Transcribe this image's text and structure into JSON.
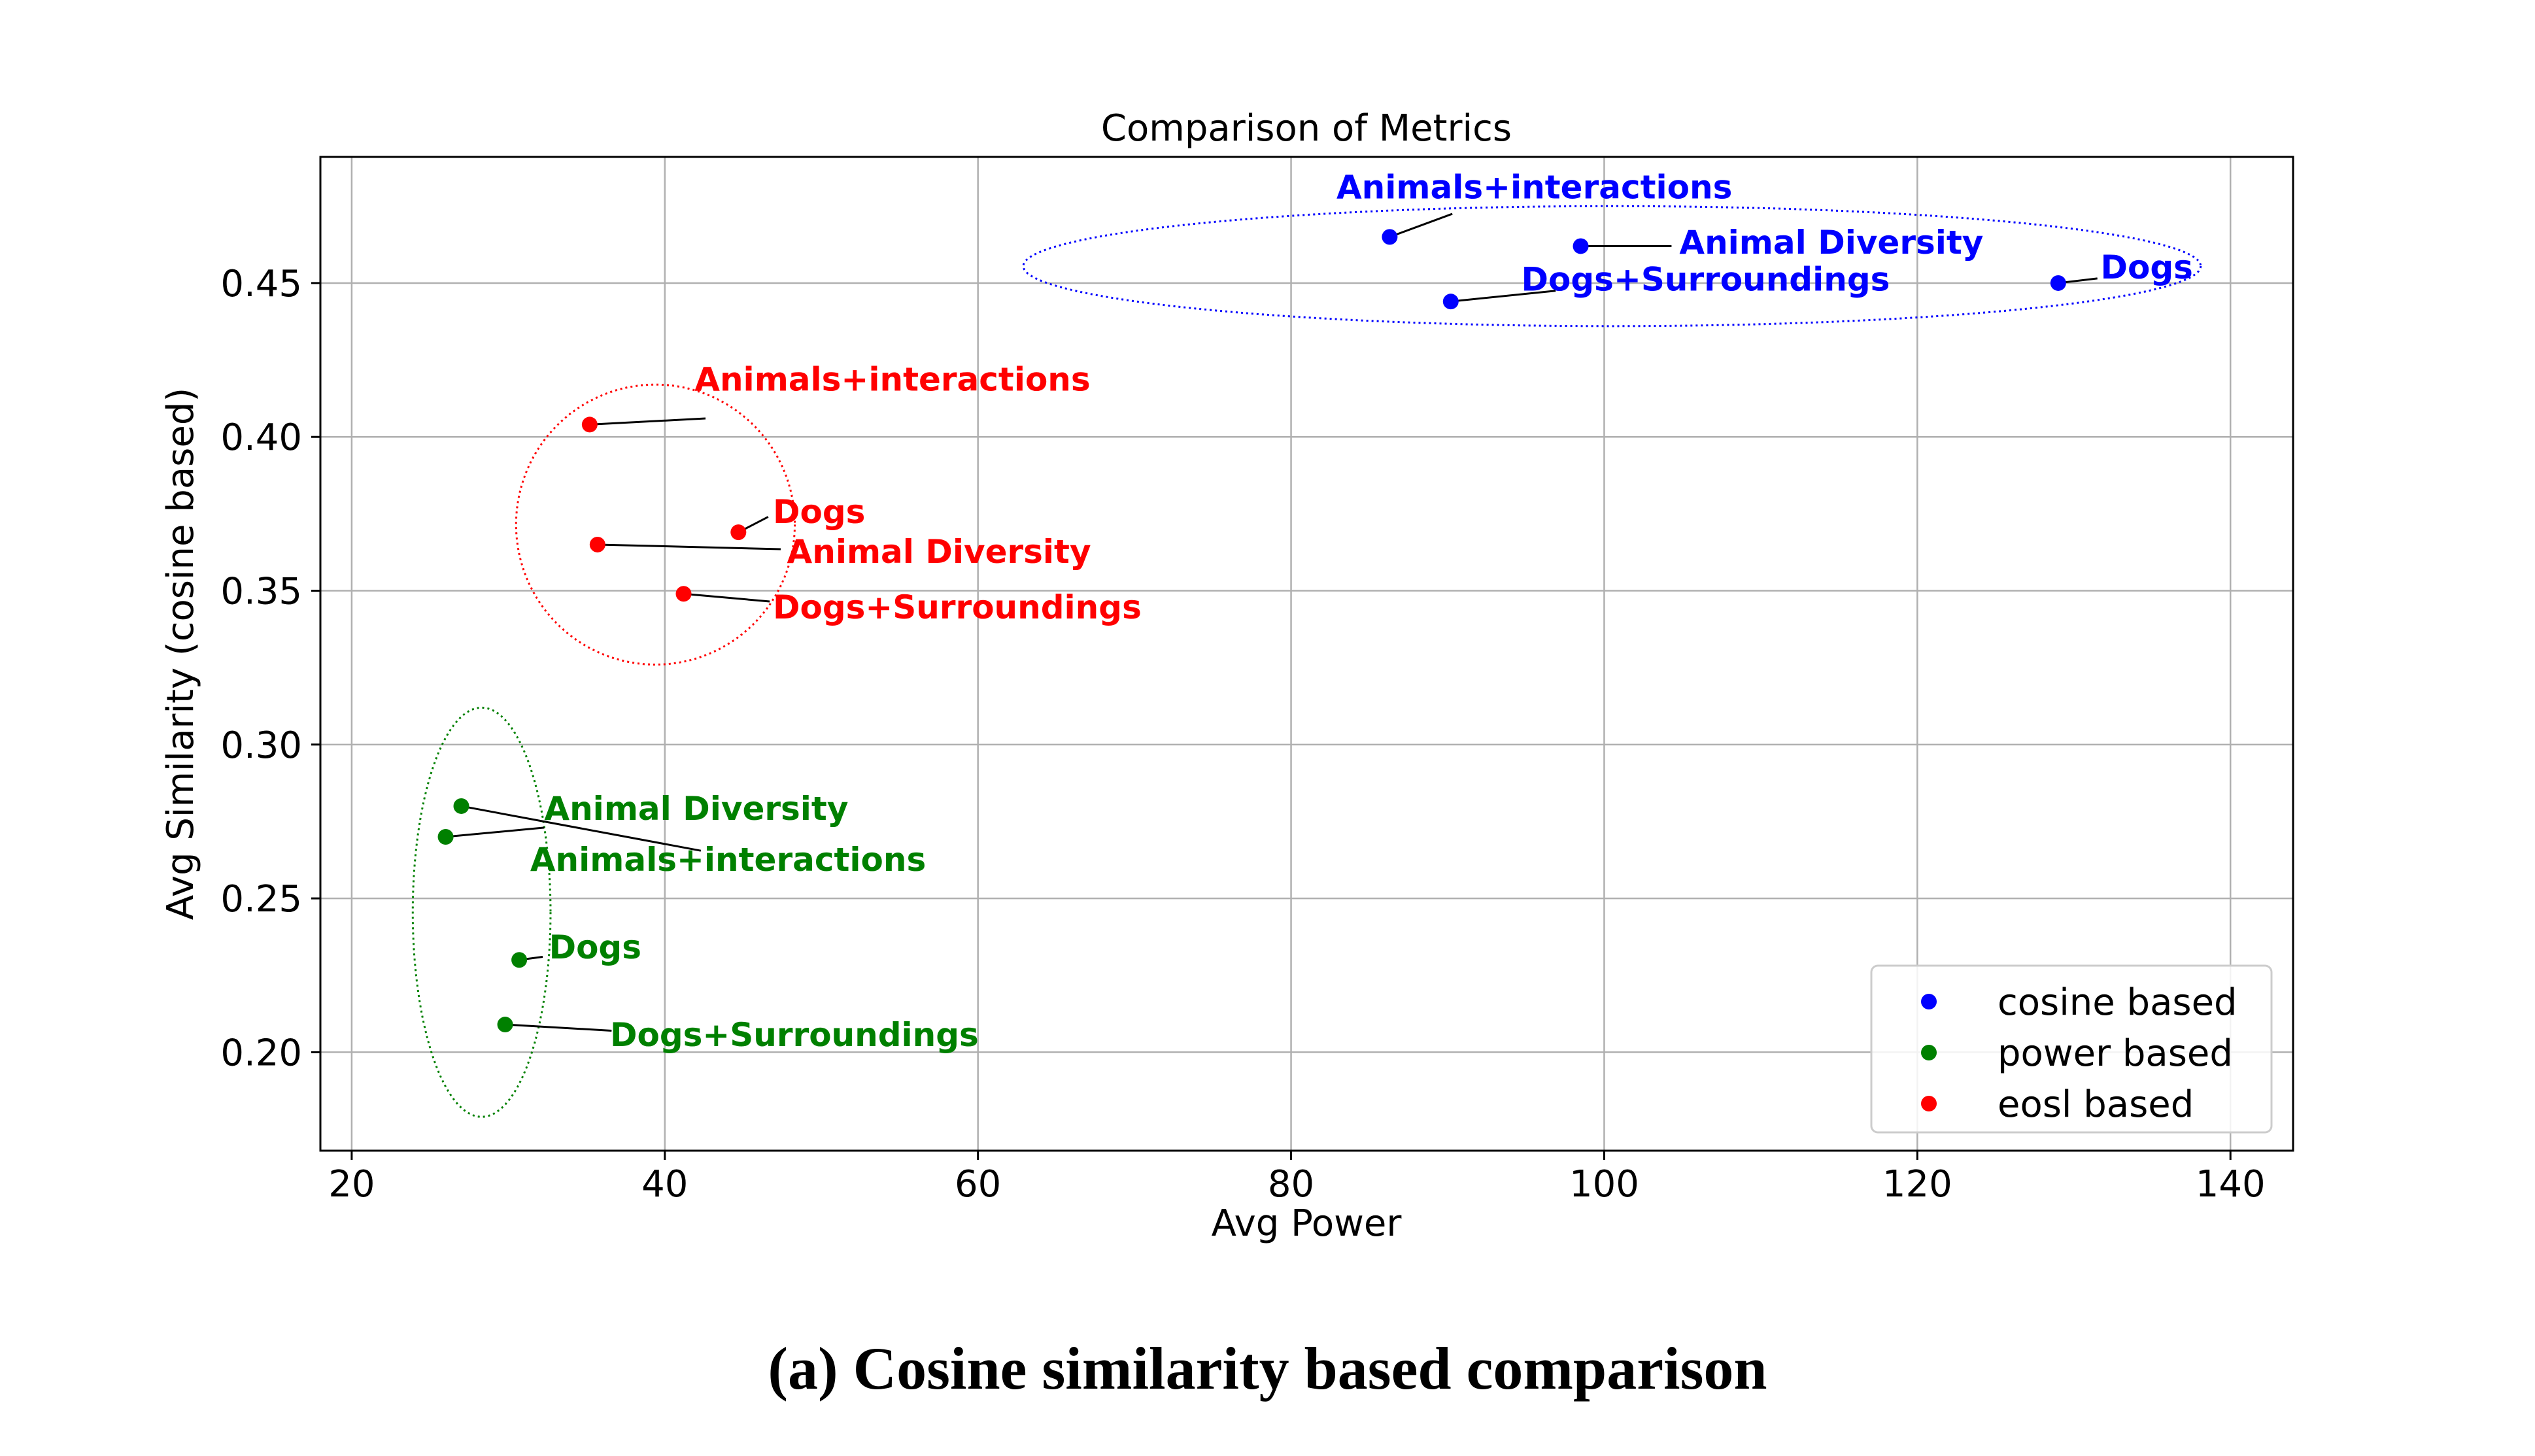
{
  "caption": "(a) Cosine similarity based comparison",
  "chart_data": {
    "type": "scatter",
    "title": "Comparison of Metrics",
    "xlabel": "Avg Power",
    "ylabel": "Avg Similarity (cosine based)",
    "xlim": [
      18,
      144
    ],
    "ylim": [
      0.168,
      0.491
    ],
    "xticks": [
      20,
      40,
      60,
      80,
      100,
      120,
      140
    ],
    "yticks": [
      0.2,
      0.25,
      0.3,
      0.35,
      0.4,
      0.45
    ],
    "xtick_labels": [
      "20",
      "40",
      "60",
      "80",
      "100",
      "120",
      "140"
    ],
    "ytick_labels": [
      "0.20",
      "0.25",
      "0.30",
      "0.35",
      "0.40",
      "0.45"
    ],
    "grid": true,
    "legend_position": "lower-right",
    "series": [
      {
        "name": "cosine based",
        "color": "#0000ff",
        "points": [
          {
            "label": "Animals+interactions",
            "x": 86.3,
            "y": 0.465
          },
          {
            "label": "Animal Diversity",
            "x": 98.5,
            "y": 0.462
          },
          {
            "label": "Dogs+Surroundings",
            "x": 90.2,
            "y": 0.444
          },
          {
            "label": "Dogs",
            "x": 129.0,
            "y": 0.45
          }
        ]
      },
      {
        "name": "power based",
        "color": "#008000",
        "points": [
          {
            "label": "Animal Diversity",
            "x": 27.0,
            "y": 0.28
          },
          {
            "label": "Animals+interactions",
            "x": 26.0,
            "y": 0.27
          },
          {
            "label": "Dogs",
            "x": 30.7,
            "y": 0.23
          },
          {
            "label": "Dogs+Surroundings",
            "x": 29.8,
            "y": 0.209
          }
        ]
      },
      {
        "name": "eosl based",
        "color": "#ff0000",
        "points": [
          {
            "label": "Animals+interactions",
            "x": 35.2,
            "y": 0.404
          },
          {
            "label": "Dogs",
            "x": 44.7,
            "y": 0.369
          },
          {
            "label": "Animal Diversity",
            "x": 35.7,
            "y": 0.365
          },
          {
            "label": "Dogs+Surroundings",
            "x": 41.2,
            "y": 0.349
          }
        ]
      }
    ]
  }
}
